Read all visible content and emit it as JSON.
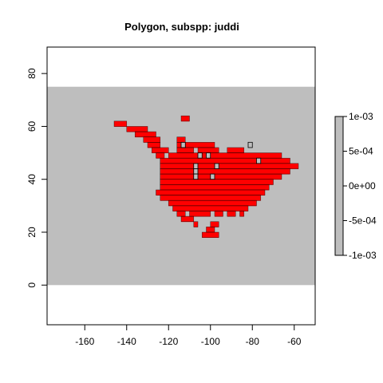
{
  "chart_data": {
    "type": "heatmap",
    "title": "Polygon, subspp: juddi",
    "xlabel": "",
    "ylabel": "",
    "xlim": [
      -178,
      -50
    ],
    "ylim": [
      -15,
      90
    ],
    "xticks": [
      -160,
      -140,
      -120,
      -100,
      -80,
      -60
    ],
    "xtick_labels": [
      "-160",
      "-140",
      "-120",
      "-100",
      "-80",
      "-60"
    ],
    "yticks": [
      0,
      20,
      40,
      60,
      80
    ],
    "ytick_labels": [
      "0",
      "20",
      "40",
      "60",
      "80"
    ],
    "raster_extent": {
      "x": [
        -178,
        -50
      ],
      "y": [
        0,
        75
      ]
    },
    "cell_size": 2,
    "background_value": 0,
    "background_color": "#bebebe",
    "range_color": "#ff0000",
    "range_rows": [
      {
        "y": 61,
        "segments": [
          [
            -146,
            -140
          ]
        ]
      },
      {
        "y": 63,
        "segments": [
          [
            -114,
            -110
          ]
        ]
      },
      {
        "y": 59,
        "segments": [
          [
            -140,
            -130
          ]
        ]
      },
      {
        "y": 57,
        "segments": [
          [
            -136,
            -126
          ]
        ]
      },
      {
        "y": 55,
        "segments": [
          [
            -132,
            -124
          ],
          [
            -116,
            -112
          ]
        ]
      },
      {
        "y": 53,
        "segments": [
          [
            -130,
            -124
          ],
          [
            -116,
            -98
          ]
        ]
      },
      {
        "y": 51,
        "segments": [
          [
            -128,
            -120
          ],
          [
            -116,
            -108
          ],
          [
            -106,
            -96
          ],
          [
            -92,
            -84
          ]
        ]
      },
      {
        "y": 49,
        "segments": [
          [
            -126,
            -122
          ],
          [
            -120,
            -66
          ]
        ]
      },
      {
        "y": 47,
        "segments": [
          [
            -124,
            -62
          ]
        ]
      },
      {
        "y": 45,
        "segments": [
          [
            -124,
            -58
          ]
        ]
      },
      {
        "y": 43,
        "segments": [
          [
            -124,
            -62
          ]
        ]
      },
      {
        "y": 41,
        "segments": [
          [
            -124,
            -66
          ]
        ]
      },
      {
        "y": 39,
        "segments": [
          [
            -124,
            -70
          ]
        ]
      },
      {
        "y": 37,
        "segments": [
          [
            -124,
            -72
          ]
        ]
      },
      {
        "y": 35,
        "segments": [
          [
            -126,
            -74
          ]
        ]
      },
      {
        "y": 33,
        "segments": [
          [
            -124,
            -76
          ]
        ]
      },
      {
        "y": 31,
        "segments": [
          [
            -120,
            -78
          ]
        ]
      },
      {
        "y": 29,
        "segments": [
          [
            -118,
            -82
          ]
        ]
      },
      {
        "y": 27,
        "segments": [
          [
            -116,
            -112
          ],
          [
            -110,
            -100
          ],
          [
            -98,
            -94
          ],
          [
            -92,
            -88
          ],
          [
            -86,
            -84
          ]
        ]
      },
      {
        "y": 25,
        "segments": [
          [
            -114,
            -108
          ]
        ]
      },
      {
        "y": 23,
        "segments": [
          [
            -108,
            -106
          ],
          [
            -100,
            -96
          ]
        ]
      },
      {
        "y": 21,
        "segments": [
          [
            -102,
            -98
          ]
        ]
      },
      {
        "y": 19,
        "segments": [
          [
            -104,
            -96
          ]
        ]
      }
    ],
    "range_holes": [
      {
        "x": -113,
        "y": 53
      },
      {
        "x": -105,
        "y": 49
      },
      {
        "x": -101,
        "y": 49
      },
      {
        "x": -107,
        "y": 45
      },
      {
        "x": -97,
        "y": 45
      },
      {
        "x": -107,
        "y": 43
      },
      {
        "x": -107,
        "y": 41
      },
      {
        "x": -99,
        "y": 41
      },
      {
        "x": -81,
        "y": 53
      },
      {
        "x": -77,
        "y": 47
      }
    ],
    "colorbar": {
      "color": "#bebebe",
      "range": [
        -0.001,
        0.001
      ],
      "ticks": [
        0.001,
        0.0005,
        0,
        -0.0005,
        -0.001
      ],
      "tick_labels": [
        "1e-03",
        "5e-04",
        "0e+00",
        "-5e-04",
        "-1e-03"
      ]
    }
  }
}
